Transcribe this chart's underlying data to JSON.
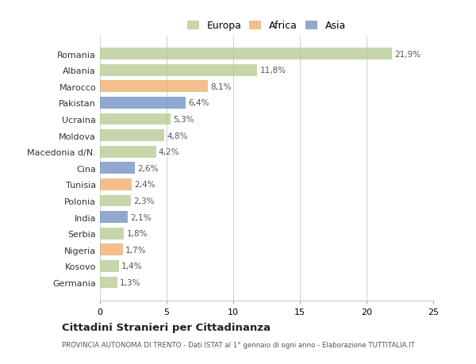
{
  "countries": [
    "Romania",
    "Albania",
    "Marocco",
    "Pakistan",
    "Ucraina",
    "Moldova",
    "Macedonia d/N.",
    "Cina",
    "Tunisia",
    "Polonia",
    "India",
    "Serbia",
    "Nigeria",
    "Kosovo",
    "Germania"
  ],
  "values": [
    21.9,
    11.8,
    8.1,
    6.4,
    5.3,
    4.8,
    4.2,
    2.6,
    2.4,
    2.3,
    2.1,
    1.8,
    1.7,
    1.4,
    1.3
  ],
  "labels": [
    "21,9%",
    "11,8%",
    "8,1%",
    "6,4%",
    "5,3%",
    "4,8%",
    "4,2%",
    "2,6%",
    "2,4%",
    "2,3%",
    "2,1%",
    "1,8%",
    "1,7%",
    "1,4%",
    "1,3%"
  ],
  "continents": [
    "Europa",
    "Europa",
    "Africa",
    "Asia",
    "Europa",
    "Europa",
    "Europa",
    "Asia",
    "Africa",
    "Europa",
    "Asia",
    "Europa",
    "Africa",
    "Europa",
    "Europa"
  ],
  "colors": {
    "Europa": "#b5c98e",
    "Africa": "#f0a868",
    "Asia": "#6b8cbf"
  },
  "legend_labels": [
    "Europa",
    "Africa",
    "Asia"
  ],
  "legend_colors": [
    "#b5c98e",
    "#f0a868",
    "#6b8cbf"
  ],
  "xlim": [
    0,
    25
  ],
  "xticks": [
    0,
    5,
    10,
    15,
    20,
    25
  ],
  "title": "Cittadini Stranieri per Cittadinanza",
  "subtitle": "PROVINCIA AUTONOMA DI TRENTO - Dati ISTAT al 1° gennaio di ogni anno - Elaborazione TUTTITALIA.IT",
  "bg_color": "#ffffff",
  "grid_color": "#d0d0d0",
  "bar_alpha": 0.75,
  "bar_height": 0.72
}
